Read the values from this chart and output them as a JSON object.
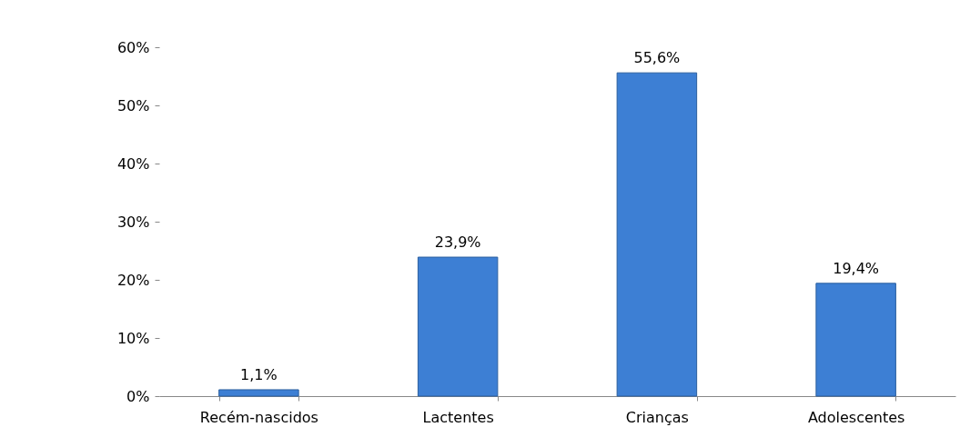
{
  "chart_data": {
    "type": "bar",
    "categories": [
      "Recém-nascidos",
      "Lactentes",
      "Crianças",
      "Adolescentes"
    ],
    "values": [
      1.1,
      23.9,
      55.6,
      19.4
    ],
    "value_labels": [
      "1,1%",
      "23,9%",
      "55,6%",
      "19,4%"
    ],
    "color": "#3d7fd4",
    "ylim": [
      0,
      60
    ],
    "yticks": [
      {
        "value": 0,
        "label": "0%"
      },
      {
        "value": 10,
        "label": "10%"
      },
      {
        "value": 20,
        "label": "20%"
      },
      {
        "value": 30,
        "label": "30%"
      },
      {
        "value": 40,
        "label": "40%"
      },
      {
        "value": 50,
        "label": "50%"
      },
      {
        "value": 60,
        "label": "60%"
      }
    ],
    "grid": false
  }
}
